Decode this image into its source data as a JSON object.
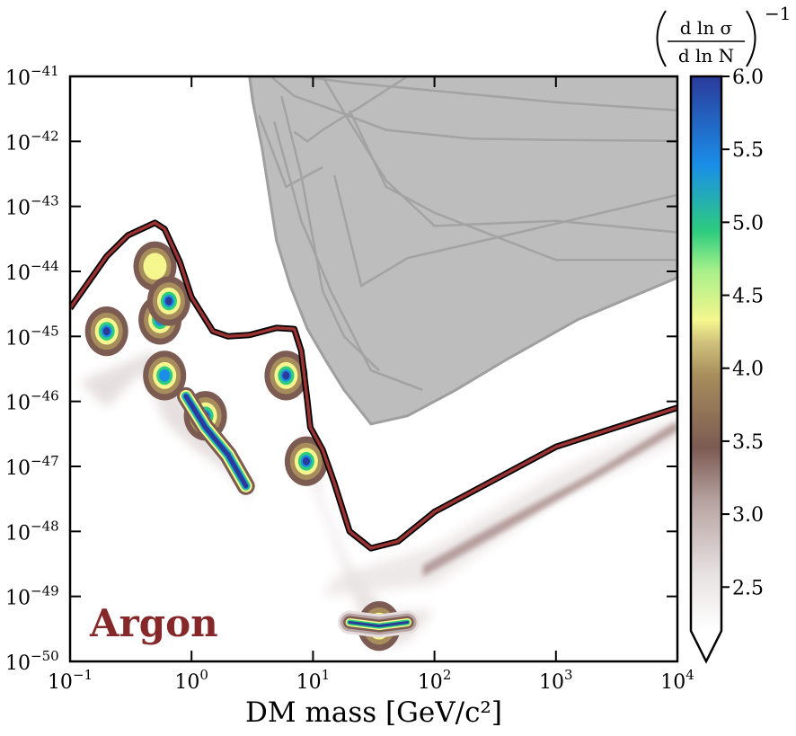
{
  "chart_data": {
    "type": "contour",
    "title": "",
    "xlabel": "DM mass [GeV/c²]",
    "ylabel": "",
    "x_scale": "log",
    "y_scale": "log",
    "xlim": [
      0.1,
      10000
    ],
    "ylim": [
      1e-50,
      1e-41
    ],
    "x_ticks": [
      {
        "base": "10",
        "exp": "−1",
        "value": 0.1
      },
      {
        "base": "10",
        "exp": "0",
        "value": 1
      },
      {
        "base": "10",
        "exp": "1",
        "value": 10
      },
      {
        "base": "10",
        "exp": "2",
        "value": 100
      },
      {
        "base": "10",
        "exp": "3",
        "value": 1000
      },
      {
        "base": "10",
        "exp": "4",
        "value": 10000
      }
    ],
    "y_ticks": [
      {
        "base": "10",
        "exp": "−41",
        "value": 1e-41
      },
      {
        "base": "10",
        "exp": "−42",
        "value": 1e-42
      },
      {
        "base": "10",
        "exp": "−43",
        "value": 1e-43
      },
      {
        "base": "10",
        "exp": "−44",
        "value": 1e-44
      },
      {
        "base": "10",
        "exp": "−45",
        "value": 1e-45
      },
      {
        "base": "10",
        "exp": "−46",
        "value": 1e-46
      },
      {
        "base": "10",
        "exp": "−47",
        "value": 1e-47
      },
      {
        "base": "10",
        "exp": "−48",
        "value": 1e-48
      },
      {
        "base": "10",
        "exp": "−49",
        "value": 1e-49
      },
      {
        "base": "10",
        "exp": "−50",
        "value": 1e-50
      }
    ],
    "annotation": "Argon",
    "colorbar": {
      "label_num": "d ln σ",
      "label_den": "d ln N",
      "label_exp": "−1",
      "min": 2.2,
      "max": 6.0,
      "extend": "min",
      "ticks": [
        "6.0",
        "5.5",
        "5.0",
        "4.5",
        "4.0",
        "3.5",
        "3.0",
        "2.5"
      ],
      "tick_values": [
        6.0,
        5.5,
        5.0,
        4.5,
        4.0,
        3.5,
        3.0,
        2.5
      ],
      "colors": [
        "#2b3b9a",
        "#1a8ee8",
        "#2ecc7e",
        "#f6f68e",
        "#a88d5c",
        "#7c5b52",
        "#c9bcbc",
        "#ffffff"
      ]
    },
    "neutrino_floor_curve": [
      [
        0.1,
        2.7e-45
      ],
      [
        0.2,
        1.7e-44
      ],
      [
        0.3,
        3.6e-44
      ],
      [
        0.5,
        5.6e-44
      ],
      [
        0.6,
        4.5e-44
      ],
      [
        0.8,
        1.4e-44
      ],
      [
        1.0,
        4e-45
      ],
      [
        1.5,
        1.2e-45
      ],
      [
        2.0,
        1e-45
      ],
      [
        3.0,
        1.05e-45
      ],
      [
        5.0,
        1.35e-45
      ],
      [
        7.0,
        1.3e-45
      ],
      [
        8.0,
        6e-46
      ],
      [
        9.0,
        1e-46
      ],
      [
        9.5,
        4e-47
      ],
      [
        12,
        1.8e-47
      ],
      [
        15,
        5.5e-48
      ],
      [
        20,
        1e-48
      ],
      [
        30,
        5.5e-49
      ],
      [
        50,
        7e-49
      ],
      [
        100,
        2e-48
      ],
      [
        1000,
        2e-47
      ],
      [
        10000,
        8e-47
      ]
    ],
    "excluded_region_boundary": [
      [
        3.0,
        1e-41
      ],
      [
        3.2,
        4e-42
      ],
      [
        3.8,
        8e-43
      ],
      [
        5.0,
        3e-44
      ],
      [
        6.5,
        6e-45
      ],
      [
        9.0,
        1.3e-45
      ],
      [
        13,
        4e-46
      ],
      [
        18,
        1.5e-46
      ],
      [
        30,
        4.5e-47
      ],
      [
        60,
        6e-47
      ],
      [
        150,
        1.5e-46
      ],
      [
        400,
        4.5e-46
      ],
      [
        1500,
        1.8e-45
      ],
      [
        10000,
        8e-45
      ]
    ],
    "exclusion_limit_lines": [
      [
        [
          4.5,
          1e-41
        ],
        [
          7,
          5e-42
        ],
        [
          15,
          3e-42
        ],
        [
          40,
          1.5e-42
        ],
        [
          200,
          1.1e-42
        ],
        [
          1000,
          1.05e-42
        ],
        [
          10000,
          1.02e-42
        ]
      ],
      [
        [
          3.6,
          2.5e-42
        ],
        [
          6,
          2e-43
        ],
        [
          12,
          4e-43
        ]
      ],
      [
        [
          7,
          1.4e-42
        ],
        [
          9,
          1e-42
        ],
        [
          12,
          1.5e-42
        ],
        [
          25,
          3.5e-42
        ],
        [
          60,
          1e-41
        ]
      ],
      [
        [
          4.8,
          2e-42
        ],
        [
          8,
          6e-44
        ],
        [
          14,
          5e-45
        ],
        [
          30,
          3e-46
        ],
        [
          80,
          1.5e-46
        ]
      ],
      [
        [
          5.5,
          5e-42
        ],
        [
          8,
          3e-43
        ],
        [
          12,
          5e-45
        ],
        [
          18,
          1e-45
        ],
        [
          35,
          3e-46
        ]
      ],
      [
        [
          15,
          3e-43
        ],
        [
          25,
          6e-45
        ],
        [
          60,
          1.6e-44
        ],
        [
          500,
          4e-44
        ],
        [
          10000,
          1.5e-43
        ]
      ],
      [
        [
          12,
          1e-41
        ],
        [
          20,
          2e-42
        ],
        [
          40,
          2.5e-43
        ],
        [
          100,
          5e-44
        ],
        [
          1000,
          6e-44
        ],
        [
          10000,
          4e-44
        ]
      ],
      [
        [
          20,
          3e-42
        ],
        [
          40,
          2e-43
        ],
        [
          100,
          8e-44
        ],
        [
          1000,
          1.5e-44
        ],
        [
          10000,
          1.5e-44
        ]
      ],
      [
        [
          8,
          1e-41
        ],
        [
          20,
          8e-42
        ],
        [
          100,
          6e-42
        ],
        [
          1000,
          4e-42
        ],
        [
          10000,
          3e-42
        ]
      ]
    ],
    "peaks": [
      {
        "x": 0.2,
        "y": 1.2e-45,
        "level": 6.0
      },
      {
        "x": 0.5,
        "y": 1.2e-44,
        "level": 4.0
      },
      {
        "x": 0.55,
        "y": 1.8e-45,
        "level": 5.6
      },
      {
        "x": 0.65,
        "y": 3.5e-45,
        "level": 6.0
      },
      {
        "x": 0.6,
        "y": 2.5e-46,
        "level": 5.6
      },
      {
        "x": 1.3,
        "y": 6e-47,
        "level": 6.0
      },
      {
        "x": 6.0,
        "y": 2.5e-46,
        "level": 6.0
      },
      {
        "x": 8.8,
        "y": 1.2e-47,
        "level": 6.0
      },
      {
        "x": 35,
        "y": 3.5e-50,
        "level": 6.0
      }
    ]
  }
}
